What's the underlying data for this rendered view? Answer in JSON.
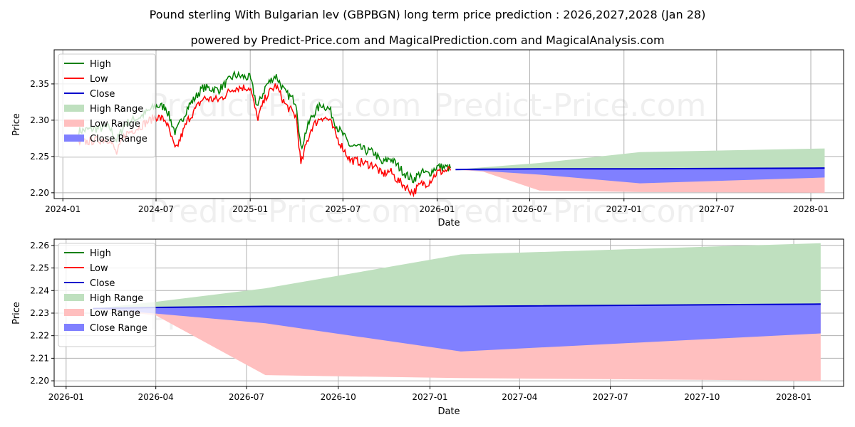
{
  "title": "Pound sterling With Bulgarian lev (GBPBGN) long term price prediction : 2026,2027,2028 (Jan 28)",
  "subtitle": "powered by Predict-Price.com and MagicalPrediction.com and MagicalAnalysis.com",
  "watermark": "Predict-Price.com",
  "legend": [
    "High",
    "Low",
    "Close",
    "High Range",
    "Low Range",
    "Close Range"
  ],
  "colors": {
    "high": "#008000",
    "low": "#ff0000",
    "close": "#0000cc",
    "high_range": "#bfe0bf",
    "low_range": "#ffbfbf",
    "close_range": "#8080ff",
    "grid": "#b0b0b0"
  },
  "chart_data": [
    {
      "type": "line",
      "xlabel": "Date",
      "ylabel": "Price",
      "xlim": [
        "2023-12-15",
        "2028-03-05"
      ],
      "ylim": [
        2.192,
        2.397
      ],
      "xticks": [
        {
          "date": "2024-01-01",
          "label": "2024-01"
        },
        {
          "date": "2024-07-01",
          "label": "2024-07"
        },
        {
          "date": "2025-01-01",
          "label": "2025-01"
        },
        {
          "date": "2025-07-01",
          "label": "2025-07"
        },
        {
          "date": "2026-01-01",
          "label": "2026-01"
        },
        {
          "date": "2026-07-01",
          "label": "2026-07"
        },
        {
          "date": "2027-01-01",
          "label": "2027-01"
        },
        {
          "date": "2027-07-01",
          "label": "2027-07"
        },
        {
          "date": "2028-01-01",
          "label": "2028-01"
        }
      ],
      "yticks": [
        2.2,
        2.25,
        2.3,
        2.35
      ],
      "history": {
        "dates": [
          "2024-02-01",
          "2024-03-01",
          "2024-04-01",
          "2024-04-15",
          "2024-05-01",
          "2024-06-01",
          "2024-07-01",
          "2024-07-20",
          "2024-08-08",
          "2024-09-01",
          "2024-10-01",
          "2024-11-01",
          "2024-12-01",
          "2025-01-01",
          "2025-01-15",
          "2025-02-01",
          "2025-02-20",
          "2025-03-10",
          "2025-04-01",
          "2025-04-10",
          "2025-04-20",
          "2025-05-01",
          "2025-05-20",
          "2025-06-05",
          "2025-06-20",
          "2025-07-01",
          "2025-07-15",
          "2025-08-01",
          "2025-08-15",
          "2025-09-01",
          "2025-09-15",
          "2025-10-01",
          "2025-10-15",
          "2025-11-01",
          "2025-11-15",
          "2025-12-01",
          "2025-12-15",
          "2026-01-01",
          "2026-01-28"
        ],
        "high": [
          2.285,
          2.288,
          2.29,
          2.272,
          2.295,
          2.305,
          2.32,
          2.318,
          2.282,
          2.318,
          2.345,
          2.342,
          2.362,
          2.358,
          2.318,
          2.348,
          2.362,
          2.338,
          2.325,
          2.26,
          2.285,
          2.305,
          2.322,
          2.315,
          2.29,
          2.28,
          2.265,
          2.262,
          2.258,
          2.255,
          2.24,
          2.248,
          2.238,
          2.225,
          2.218,
          2.228,
          2.226,
          2.236,
          2.234
        ],
        "low": [
          2.268,
          2.272,
          2.274,
          2.254,
          2.28,
          2.292,
          2.305,
          2.3,
          2.258,
          2.3,
          2.33,
          2.328,
          2.345,
          2.345,
          2.302,
          2.333,
          2.348,
          2.322,
          2.305,
          2.238,
          2.266,
          2.29,
          2.305,
          2.3,
          2.275,
          2.262,
          2.245,
          2.243,
          2.24,
          2.238,
          2.225,
          2.23,
          2.218,
          2.208,
          2.2,
          2.212,
          2.214,
          2.228,
          2.232
        ]
      },
      "forecast": {
        "dates": [
          "2026-02-06",
          "2026-04-01",
          "2026-07-20",
          "2027-02-01",
          "2028-01-28"
        ],
        "close": [
          2.232,
          2.2325,
          2.233,
          2.233,
          2.234
        ],
        "high_upper": [
          2.232,
          2.235,
          2.241,
          2.256,
          2.261
        ],
        "low_lower": [
          2.232,
          2.229,
          2.203,
          2.201,
          2.2
        ],
        "close_lower": [
          2.232,
          2.23,
          2.225,
          2.213,
          2.221
        ]
      }
    },
    {
      "type": "line",
      "xlabel": "Date",
      "ylabel": "Price",
      "xlim": [
        "2025-12-20",
        "2028-02-20"
      ],
      "ylim": [
        2.1975,
        2.2628
      ],
      "xticks": [
        {
          "date": "2026-01-01",
          "label": "2026-01"
        },
        {
          "date": "2026-04-01",
          "label": "2026-04"
        },
        {
          "date": "2026-07-01",
          "label": "2026-07"
        },
        {
          "date": "2026-10-01",
          "label": "2026-10"
        },
        {
          "date": "2027-01-01",
          "label": "2027-01"
        },
        {
          "date": "2027-04-01",
          "label": "2027-04"
        },
        {
          "date": "2027-07-01",
          "label": "2027-07"
        },
        {
          "date": "2027-10-01",
          "label": "2027-10"
        },
        {
          "date": "2028-01-01",
          "label": "2028-01"
        }
      ],
      "yticks": [
        2.2,
        2.21,
        2.22,
        2.23,
        2.24,
        2.25,
        2.26
      ],
      "forecast": {
        "dates": [
          "2026-01-28",
          "2026-04-01",
          "2026-07-20",
          "2027-02-01",
          "2028-01-28"
        ],
        "close": [
          2.232,
          2.2325,
          2.233,
          2.233,
          2.234
        ],
        "high_upper": [
          2.232,
          2.235,
          2.241,
          2.256,
          2.261
        ],
        "low_lower": [
          2.232,
          2.229,
          2.2025,
          2.2012,
          2.2
        ],
        "close_lower": [
          2.232,
          2.2298,
          2.2255,
          2.213,
          2.221
        ]
      }
    }
  ]
}
